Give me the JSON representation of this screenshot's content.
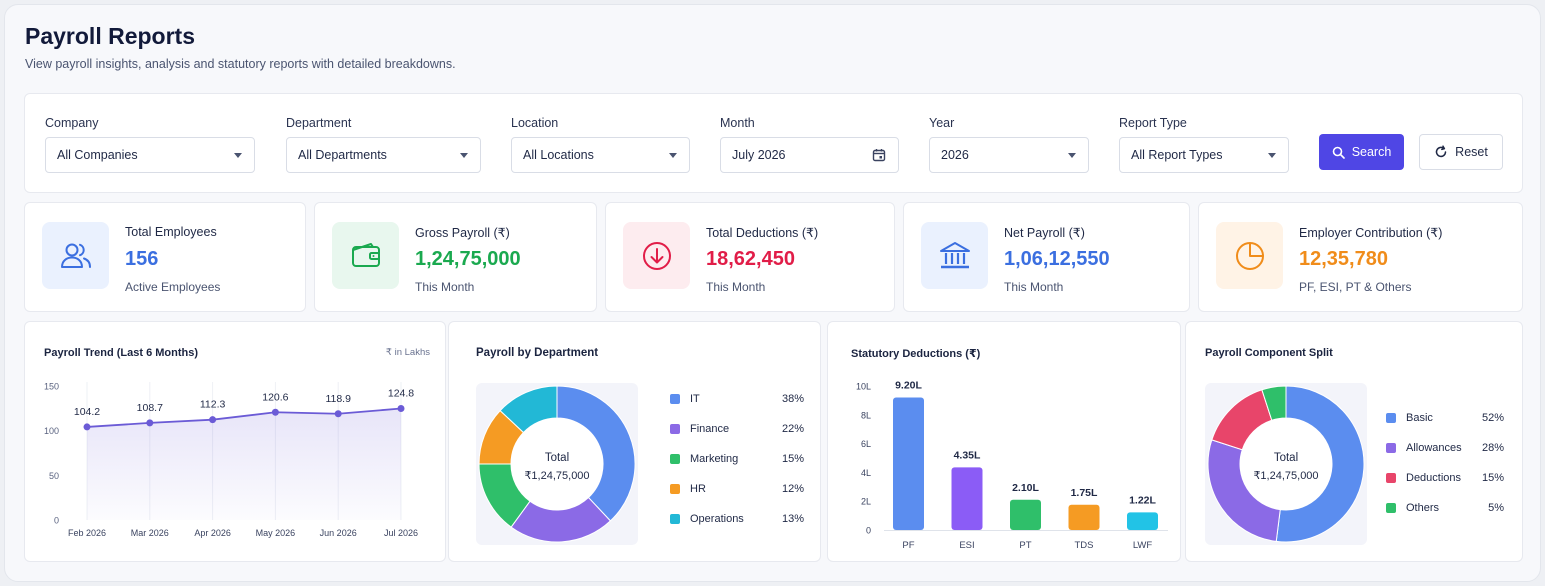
{
  "header": {
    "title": "Payroll Reports",
    "subtitle": "View payroll insights, analysis and statutory reports with detailed breakdowns."
  },
  "filters": {
    "company": {
      "label": "Company",
      "value": "All Companies"
    },
    "department": {
      "label": "Department",
      "value": "All Departments"
    },
    "location": {
      "label": "Location",
      "value": "All Locations"
    },
    "month": {
      "label": "Month",
      "value": "July 2026"
    },
    "year": {
      "label": "Year",
      "value": "2026"
    },
    "report_type": {
      "label": "Report Type",
      "value": "All Report Types"
    },
    "search_label": "Search",
    "reset_label": "Reset"
  },
  "stats": [
    {
      "label": "Total Employees",
      "value": "156",
      "caption": "Active Employees",
      "color": "#3b6fe0",
      "bg": "#eaf1fe",
      "icon": "users-icon"
    },
    {
      "label": "Gross Payroll (₹)",
      "value": "1,24,75,000",
      "caption": "This Month",
      "color": "#1aa94f",
      "bg": "#e8f7ee",
      "icon": "wallet-icon"
    },
    {
      "label": "Total Deductions (₹)",
      "value": "18,62,450",
      "caption": "This Month",
      "color": "#e11d48",
      "bg": "#fdecef",
      "icon": "arrow-down-circle-icon"
    },
    {
      "label": "Net Payroll (₹)",
      "value": "1,06,12,550",
      "caption": "This Month",
      "color": "#3b6fe0",
      "bg": "#eaf1fe",
      "icon": "bank-icon"
    },
    {
      "label": "Employer Contribution (₹)",
      "value": "12,35,780",
      "caption": "PF, ESI, PT & Others",
      "color": "#f08c1a",
      "bg": "#fff3e6",
      "icon": "pie-chart-icon"
    }
  ],
  "chart_data": [
    {
      "type": "line",
      "title": "Payroll Trend (Last 6 Months)",
      "unit": "₹ in Lakhs",
      "x": [
        "Feb 2026",
        "Mar 2026",
        "Apr 2026",
        "May 2026",
        "Jun 2026",
        "Jul 2026"
      ],
      "values": [
        104.2,
        108.7,
        112.3,
        120.6,
        118.9,
        124.8
      ],
      "y_ticks": [
        "0",
        "50",
        "100",
        "150"
      ],
      "ylim": [
        0,
        150
      ],
      "color": "#6b5bd6"
    },
    {
      "type": "pie",
      "title": "Payroll by Department",
      "center_label": "Total",
      "center_value": "₹1,24,75,000",
      "slices": [
        {
          "name": "IT",
          "value": 38,
          "label": "38%",
          "color": "#5b8def"
        },
        {
          "name": "Finance",
          "value": 22,
          "label": "22%",
          "color": "#8b6ae6"
        },
        {
          "name": "Marketing",
          "value": 15,
          "label": "15%",
          "color": "#2fbf6a"
        },
        {
          "name": "HR",
          "value": 12,
          "label": "12%",
          "color": "#f59b23"
        },
        {
          "name": "Operations",
          "value": 13,
          "label": "13%",
          "color": "#22b8d6"
        }
      ]
    },
    {
      "type": "bar",
      "title": "Statutory Deductions (₹)",
      "categories": [
        "PF",
        "ESI",
        "PT",
        "TDS",
        "LWF"
      ],
      "values": [
        9.2,
        4.35,
        2.1,
        1.75,
        1.22
      ],
      "labels": [
        "9.20L",
        "4.35L",
        "2.10L",
        "1.75L",
        "1.22L"
      ],
      "colors": [
        "#5b8def",
        "#8b5cf6",
        "#2fbf6a",
        "#f59b23",
        "#22c3e6"
      ],
      "y_ticks": [
        "0",
        "2L",
        "4L",
        "6L",
        "8L",
        "10L"
      ],
      "ylim": [
        0,
        10
      ]
    },
    {
      "type": "pie",
      "title": "Payroll Component Split",
      "center_label": "Total",
      "center_value": "₹1,24,75,000",
      "slices": [
        {
          "name": "Basic",
          "value": 52,
          "label": "52%",
          "color": "#5b8def"
        },
        {
          "name": "Allowances",
          "value": 28,
          "label": "28%",
          "color": "#8b6ae6"
        },
        {
          "name": "Deductions",
          "value": 15,
          "label": "15%",
          "color": "#e8456a"
        },
        {
          "name": "Others",
          "value": 5,
          "label": "5%",
          "color": "#2fbf6a"
        }
      ]
    }
  ]
}
